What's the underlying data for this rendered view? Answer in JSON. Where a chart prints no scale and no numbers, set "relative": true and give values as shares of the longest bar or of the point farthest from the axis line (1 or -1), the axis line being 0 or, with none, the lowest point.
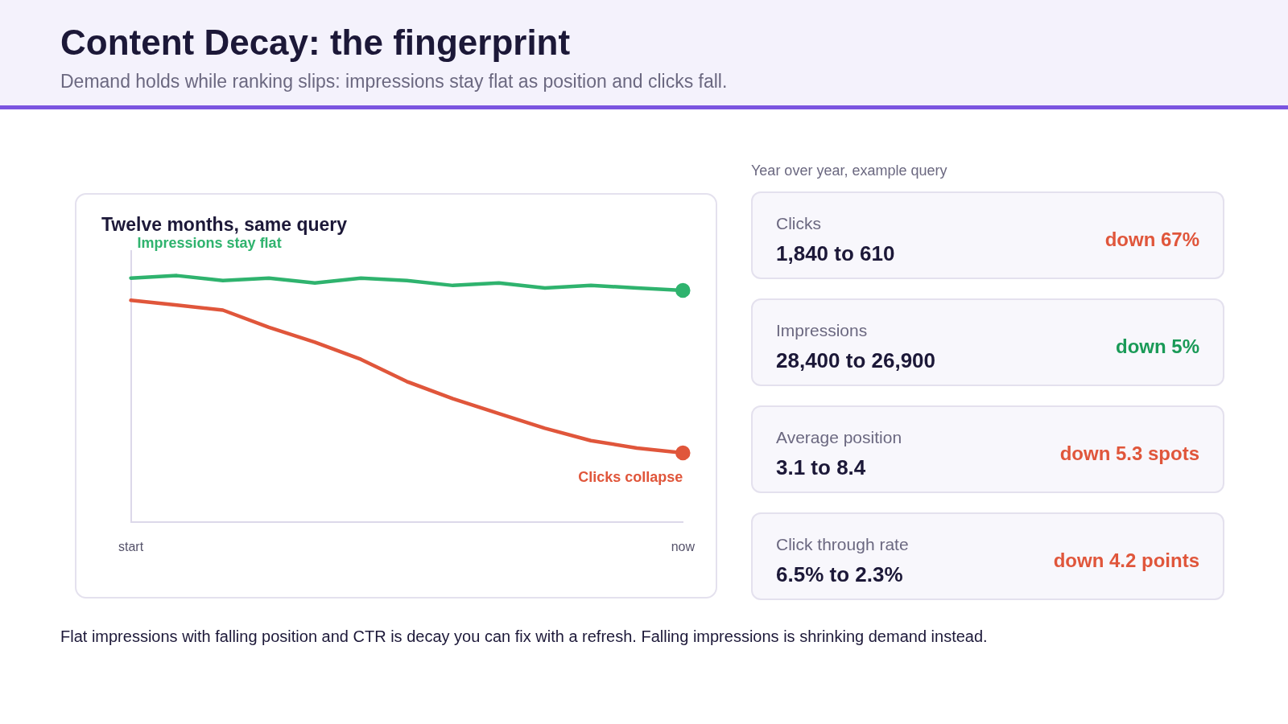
{
  "chart_data": [
    {
      "type": "line",
      "title": "Content Decay: the fingerprint",
      "subtitle": "Demand holds while ranking slips: impressions stay flat as position and clicks fall.",
      "relative": true,
      "grid": false,
      "legend": false,
      "line_style": "solid",
      "categories": [
        "start",
        null,
        null,
        null,
        null,
        null,
        null,
        null,
        null,
        null,
        null,
        null,
        "now"
      ],
      "series": [
        {
          "name": "Impressions stay flat",
          "color": "#2fb36e",
          "values": [
            0.99,
            1,
            0.98,
            0.99,
            0.97,
            0.99,
            0.98,
            0.96,
            0.97,
            0.95,
            0.96,
            0.95,
            0.94
          ]
        },
        {
          "name": "Clicks collapse",
          "color": "#e0563b",
          "values": [
            0.9,
            0.88,
            0.86,
            0.79,
            0.73,
            0.66,
            0.57,
            0.5,
            0.44,
            0.38,
            0.33,
            0.3,
            0.28
          ]
        }
      ],
      "annotations": [
        "Twelve months, same query",
        "Flat impressions with falling position and CTR is decay you can fix with a refresh. Falling impressions is shrinking demand instead."
      ]
    },
    {
      "type": "other",
      "title": "Year over year, example query",
      "colors": [
        "#e0563b",
        "#1a9a57",
        "#e0563b",
        "#e0563b"
      ],
      "annotations": [
        "Clicks",
        "1,840 to 610",
        "down 67%",
        "Impressions",
        "28,400 to 26,900",
        "down 5%",
        "Average position",
        "3.1 to 8.4",
        "down 5.3 spots",
        "Click through rate",
        "6.5% to 2.3%",
        "down 4.2 points"
      ]
    }
  ]
}
